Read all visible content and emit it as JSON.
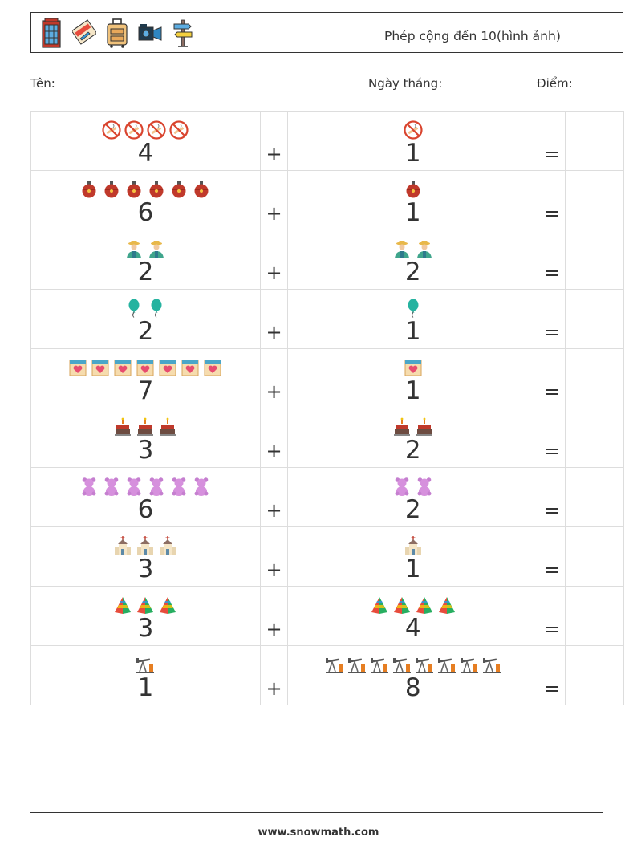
{
  "header": {
    "title": "Phép cộng đến 10(hình ảnh)",
    "icons": [
      "phone-booth-icon",
      "plane-ticket-icon",
      "luggage-icon",
      "camcorder-icon",
      "signpost-icon"
    ]
  },
  "labels": {
    "name": "Tên:",
    "date": "Ngày tháng:",
    "score": "Điểm:"
  },
  "operator": "+",
  "equals": "=",
  "problems": [
    {
      "a": "4",
      "a_icon": "no-smoking-icon",
      "b": "1",
      "b_icon": "no-smoking-icon"
    },
    {
      "a": "6",
      "a_icon": "ornament-icon",
      "b": "1",
      "b_icon": "ornament-icon"
    },
    {
      "a": "2",
      "a_icon": "farmer-icon",
      "b": "2",
      "b_icon": "farmer-icon"
    },
    {
      "a": "2",
      "a_icon": "balloon-icon",
      "b": "1",
      "b_icon": "balloon-icon"
    },
    {
      "a": "7",
      "a_icon": "calendar-heart-icon",
      "b": "1",
      "b_icon": "calendar-heart-icon"
    },
    {
      "a": "3",
      "a_icon": "cake-icon",
      "b": "2",
      "b_icon": "cake-icon"
    },
    {
      "a": "6",
      "a_icon": "teddy-bear-icon",
      "b": "2",
      "b_icon": "teddy-bear-icon"
    },
    {
      "a": "3",
      "a_icon": "church-icon",
      "b": "1",
      "b_icon": "church-icon"
    },
    {
      "a": "3",
      "a_icon": "pyramid-icon",
      "b": "4",
      "b_icon": "pyramid-icon"
    },
    {
      "a": "1",
      "a_icon": "oil-pump-icon",
      "b": "8",
      "b_icon": "oil-pump-icon"
    }
  ],
  "footer": {
    "url": "www.snowmath.com"
  }
}
